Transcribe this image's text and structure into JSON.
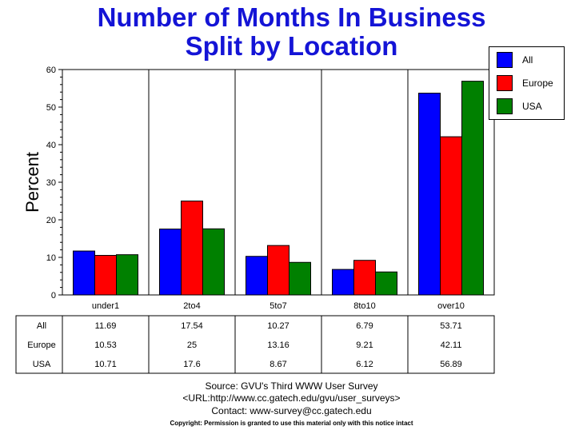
{
  "chart_data": {
    "type": "bar",
    "title": "Number of Months In Business",
    "subtitle": "Split by Location",
    "ylabel": "Percent",
    "xlabel": "",
    "ylim": [
      0,
      60
    ],
    "yticks": [
      0,
      10,
      20,
      30,
      40,
      50,
      60
    ],
    "grid": "vertical",
    "legend_position": "top-right",
    "categories": [
      "under1",
      "2to4",
      "5to7",
      "8to10",
      "over10"
    ],
    "series": [
      {
        "name": "All",
        "color": "#0000ff",
        "values": [
          11.69,
          17.54,
          10.27,
          6.79,
          53.71
        ],
        "labels": [
          "11.69",
          "17.54",
          "10.27",
          "6.79",
          "53.71"
        ]
      },
      {
        "name": "Europe",
        "color": "#ff0000",
        "values": [
          10.53,
          25,
          13.16,
          9.21,
          42.11
        ],
        "labels": [
          "10.53",
          "25",
          "13.16",
          "9.21",
          "42.11"
        ]
      },
      {
        "name": "USA",
        "color": "#008000",
        "values": [
          10.71,
          17.6,
          8.67,
          6.12,
          56.89
        ],
        "labels": [
          "10.71",
          "17.6",
          "8.67",
          "6.12",
          "56.89"
        ]
      }
    ]
  },
  "footer": {
    "source": "Source: GVU's Third WWW User Survey",
    "url": "<URL:http://www.cc.gatech.edu/gvu/user_surveys>",
    "contact": "Contact: www-survey@cc.gatech.edu",
    "copyright": "Copyright: Permission is granted to use this material only with this notice intact"
  }
}
